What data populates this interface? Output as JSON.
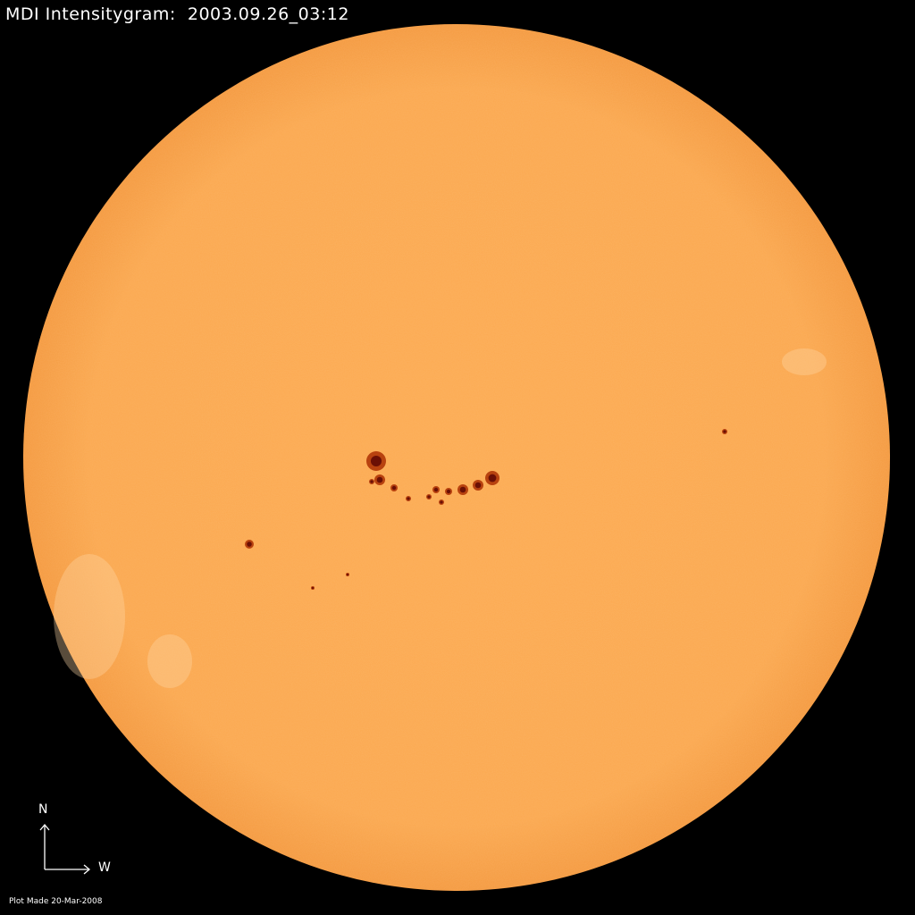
{
  "title": "MDI Intensitygram:  2003.09.26_03:12",
  "footer": "Plot Made 20-Mar-2008",
  "compass": {
    "north": "N",
    "west": "W"
  },
  "colors": {
    "background": "#000000",
    "disk": "#fba84f",
    "limb": "#f59b40",
    "spot_umbra": "#6a0f05",
    "spot_penumbra": "#b8420f",
    "text": "#ffffff"
  }
}
